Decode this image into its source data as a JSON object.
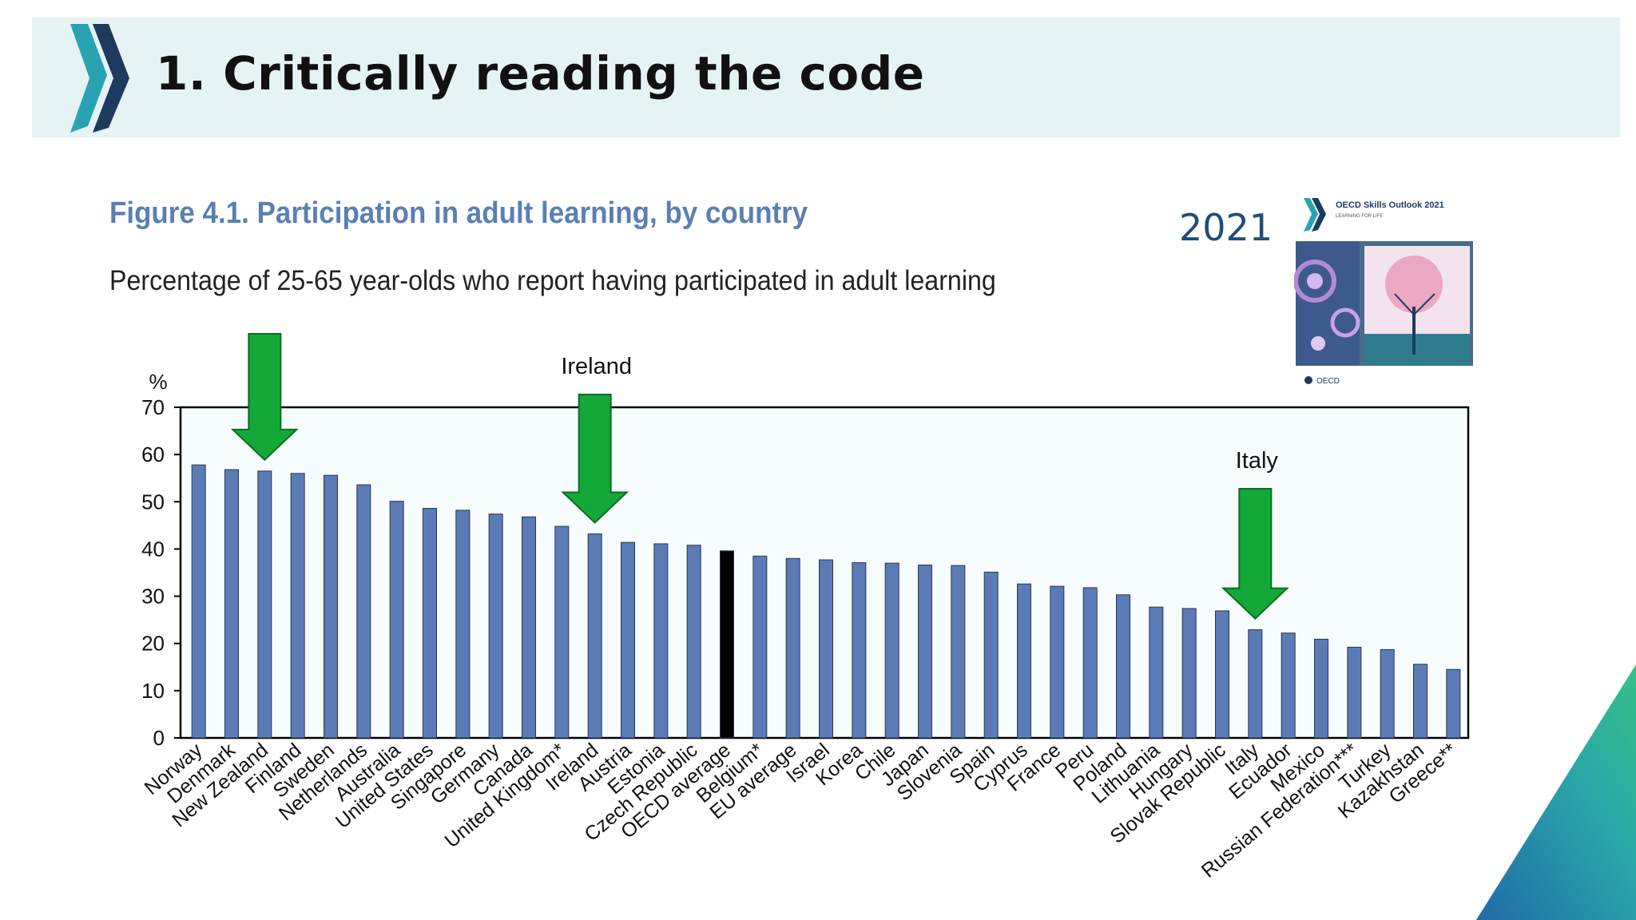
{
  "slide": {
    "title": "1. Critically reading the code",
    "year_label": "2021"
  },
  "book": {
    "title": "OECD Skills Outlook 2021",
    "tagline": "LEARNING FOR LIFE",
    "publisher": "OECD"
  },
  "annotations": [
    {
      "label": "",
      "target": "New Zealand"
    },
    {
      "label": "Ireland",
      "target": "Ireland"
    },
    {
      "label": "Italy",
      "target": "Italy"
    }
  ],
  "colors": {
    "bar": "#5b7bb6",
    "highlight_bar": "#000000",
    "arrow": "#13a838",
    "title": "#5a7fb5",
    "banner": "#e6f3f4"
  },
  "chart_data": {
    "type": "bar",
    "title": "Figure 4.1. Participation in adult learning, by country",
    "subtitle": "Percentage of 25-65 year-olds who report having participated in adult learning",
    "ylabel": "%",
    "xlabel": "",
    "ylim": [
      0,
      70
    ],
    "yticks": [
      0,
      10,
      20,
      30,
      40,
      50,
      60,
      70
    ],
    "grid": false,
    "categories": [
      "Norway",
      "Denmark",
      "New Zealand",
      "Finland",
      "Sweden",
      "Netherlands",
      "Australia",
      "United States",
      "Singapore",
      "Germany",
      "Canada",
      "United Kingdom*",
      "Ireland",
      "Austria",
      "Estonia",
      "Czech Republic",
      "OECD average",
      "Belgium*",
      "EU average",
      "Israel",
      "Korea",
      "Chile",
      "Japan",
      "Slovenia",
      "Spain",
      "Cyprus",
      "France",
      "Peru",
      "Poland",
      "Lithuania",
      "Hungary",
      "Slovak Republic",
      "Italy",
      "Ecuador",
      "Mexico",
      "Russian Federation***",
      "Turkey",
      "Kazakhstan",
      "Greece**"
    ],
    "values": [
      57.8,
      56.8,
      56.5,
      56.0,
      55.6,
      53.6,
      50.1,
      48.6,
      48.2,
      47.4,
      46.8,
      44.8,
      43.2,
      41.4,
      41.1,
      40.8,
      39.6,
      38.5,
      38.0,
      37.7,
      37.1,
      37.0,
      36.6,
      36.5,
      35.1,
      32.6,
      32.1,
      31.8,
      30.3,
      27.7,
      27.4,
      26.9,
      22.9,
      22.2,
      20.9,
      19.2,
      18.7,
      15.6,
      14.5
    ],
    "highlight": [
      "OECD average"
    ]
  }
}
